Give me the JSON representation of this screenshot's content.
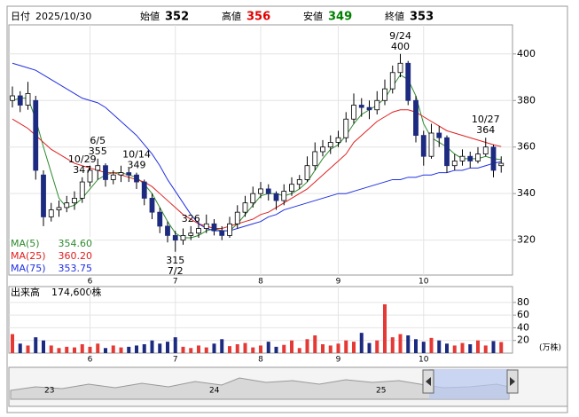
{
  "chart_data": {
    "type": "candlestick",
    "header": {
      "date_label": "日付",
      "date": "2025/10/30",
      "fields": [
        {
          "name": "始値",
          "value": 352,
          "color": "#000000"
        },
        {
          "name": "高値",
          "value": 356,
          "color": "#e00000"
        },
        {
          "name": "安値",
          "value": 349,
          "color": "#008000"
        },
        {
          "name": "終値",
          "value": 353,
          "color": "#000000"
        }
      ]
    },
    "categories": [
      null,
      null,
      null,
      null,
      null,
      null,
      null,
      null,
      null,
      null,
      "6",
      null,
      null,
      null,
      null,
      null,
      null,
      null,
      null,
      null,
      null,
      "7",
      null,
      null,
      null,
      null,
      null,
      null,
      null,
      null,
      null,
      null,
      "8",
      null,
      null,
      null,
      null,
      null,
      null,
      null,
      null,
      null,
      "9",
      null,
      null,
      null,
      null,
      null,
      null,
      null,
      null,
      null,
      null,
      "10",
      null,
      null,
      null,
      null,
      null,
      null,
      null,
      null,
      null,
      null
    ],
    "candles": [
      [
        380,
        386,
        377,
        382
      ],
      [
        382,
        384,
        375,
        378
      ],
      [
        378,
        388,
        376,
        383
      ],
      [
        380,
        382,
        346,
        350
      ],
      [
        348,
        350,
        326,
        330
      ],
      [
        330,
        336,
        328,
        333
      ],
      [
        333,
        337,
        330,
        334
      ],
      [
        334,
        339,
        332,
        336
      ],
      [
        336,
        341,
        333,
        338
      ],
      [
        338,
        347,
        336,
        345
      ],
      [
        345,
        352,
        343,
        350
      ],
      [
        350,
        355,
        346,
        352
      ],
      [
        352,
        353,
        343,
        346
      ],
      [
        346,
        350,
        344,
        348
      ],
      [
        348,
        352,
        345,
        349
      ],
      [
        349,
        351,
        345,
        348
      ],
      [
        348,
        349,
        342,
        345
      ],
      [
        345,
        346,
        335,
        338
      ],
      [
        338,
        340,
        329,
        332
      ],
      [
        332,
        334,
        323,
        326
      ],
      [
        326,
        328,
        319,
        322
      ],
      [
        322,
        324,
        315,
        320
      ],
      [
        320,
        325,
        318,
        322
      ],
      [
        322,
        326,
        320,
        323
      ],
      [
        323,
        328,
        321,
        325
      ],
      [
        325,
        331,
        323,
        327
      ],
      [
        327,
        329,
        322,
        324
      ],
      [
        324,
        326,
        320,
        322
      ],
      [
        322,
        330,
        321,
        327
      ],
      [
        327,
        335,
        325,
        332
      ],
      [
        332,
        339,
        330,
        336
      ],
      [
        336,
        343,
        334,
        340
      ],
      [
        340,
        345,
        338,
        342
      ],
      [
        342,
        344,
        337,
        340
      ],
      [
        340,
        341,
        333,
        337
      ],
      [
        337,
        344,
        335,
        341
      ],
      [
        341,
        347,
        339,
        344
      ],
      [
        344,
        348,
        342,
        346
      ],
      [
        346,
        356,
        345,
        352
      ],
      [
        352,
        362,
        350,
        358
      ],
      [
        358,
        363,
        356,
        360
      ],
      [
        360,
        365,
        357,
        362
      ],
      [
        362,
        367,
        360,
        364
      ],
      [
        364,
        375,
        362,
        372
      ],
      [
        372,
        383,
        370,
        378
      ],
      [
        378,
        381,
        373,
        377
      ],
      [
        377,
        380,
        372,
        376
      ],
      [
        376,
        384,
        374,
        380
      ],
      [
        380,
        389,
        378,
        385
      ],
      [
        385,
        395,
        383,
        392
      ],
      [
        392,
        400,
        390,
        396
      ],
      [
        396,
        397,
        378,
        380
      ],
      [
        380,
        382,
        362,
        365
      ],
      [
        365,
        367,
        352,
        356
      ],
      [
        356,
        370,
        355,
        366
      ],
      [
        366,
        369,
        360,
        364
      ],
      [
        364,
        365,
        349,
        352
      ],
      [
        352,
        357,
        350,
        354
      ],
      [
        354,
        359,
        352,
        356
      ],
      [
        356,
        358,
        351,
        354
      ],
      [
        354,
        360,
        353,
        357
      ],
      [
        357,
        364,
        356,
        360
      ],
      [
        360,
        361,
        347,
        350
      ],
      [
        352,
        356,
        349,
        353
      ]
    ],
    "up_color": "#ffffff",
    "down_color": "#1c2a80",
    "wick_color": "#000000",
    "ylim": [
      305,
      412.5
    ],
    "yticks": [
      320,
      340,
      360,
      380,
      400
    ],
    "grid": true,
    "ma": [
      {
        "name": "MA(5)",
        "color": "#2e8b2e",
        "last": {
          "value": 354.6,
          "label": "354.60"
        },
        "values": [
          380,
          381,
          381,
          372,
          360,
          349,
          338,
          334,
          335,
          338,
          342,
          346,
          348,
          349,
          349,
          348,
          347,
          344,
          340,
          334,
          328,
          323,
          321,
          321,
          322,
          324,
          325,
          324,
          324,
          327,
          331,
          335,
          339,
          340,
          340,
          339,
          340,
          342,
          345,
          350,
          355,
          359,
          361,
          365,
          370,
          374,
          376,
          378,
          381,
          386,
          391,
          389,
          382,
          370,
          364,
          362,
          360,
          357,
          355,
          355,
          355,
          356,
          355,
          354.6
        ]
      },
      {
        "name": "MA(25)",
        "color": "#e02020",
        "last": {
          "value": 360.2,
          "label": "360.20"
        },
        "values": [
          372,
          370,
          368,
          365,
          362,
          359,
          357,
          355,
          353,
          352,
          351,
          350,
          349,
          349,
          348,
          347,
          346,
          345,
          343,
          340,
          337,
          334,
          331,
          329,
          327,
          326,
          325,
          325,
          326,
          327,
          328,
          329,
          331,
          332,
          334,
          336,
          338,
          340,
          342,
          345,
          348,
          351,
          354,
          357,
          362,
          365,
          368,
          371,
          373,
          375,
          376,
          376,
          375,
          373,
          371,
          369,
          367,
          366,
          365,
          364,
          363,
          362,
          361,
          360.2
        ]
      },
      {
        "name": "MA(75)",
        "color": "#2030e0",
        "last": {
          "value": 353.75,
          "label": "353.75"
        },
        "values": [
          396,
          395,
          394,
          393,
          391,
          389,
          387,
          385,
          383,
          381,
          380,
          379,
          377,
          374,
          371,
          368,
          365,
          361,
          357,
          352,
          346,
          341,
          336,
          331,
          327,
          325,
          324,
          324,
          324,
          325,
          326,
          327,
          328,
          330,
          331,
          333,
          334,
          335,
          336,
          337,
          338,
          339,
          340,
          340,
          341,
          342,
          343,
          344,
          345,
          346,
          346,
          347,
          347,
          348,
          348,
          349,
          349,
          350,
          350,
          351,
          351,
          352,
          353,
          353.75
        ]
      }
    ],
    "annotations": [
      {
        "date": "9/24",
        "value": 400
      },
      {
        "date": "6/5",
        "value": 355
      },
      {
        "value": 326
      },
      {
        "value": 315,
        "date": "7/2"
      },
      {
        "date": "10/27",
        "value": 364
      },
      {
        "value": 349,
        "date": "10/14"
      },
      {
        "value": 347,
        "date": "10/29"
      }
    ],
    "volume": {
      "title": "出来高",
      "last": {
        "value": 17.46,
        "label": "174,600株"
      },
      "unit": "(万株)",
      "up_color": "#e53935",
      "down_color": "#1c2a80",
      "ylim": [
        0,
        98
      ],
      "yticks": [
        20,
        40,
        60,
        80
      ],
      "values": [
        30,
        15,
        12,
        25,
        20,
        12,
        8,
        10,
        9,
        14,
        10,
        15,
        8,
        12,
        9,
        10,
        12,
        14,
        20,
        15,
        18,
        25,
        10,
        8,
        12,
        9,
        15,
        22,
        11,
        14,
        16,
        9,
        12,
        18,
        10,
        13,
        20,
        8,
        22,
        28,
        14,
        12,
        15,
        20,
        18,
        32,
        16,
        20,
        77,
        25,
        30,
        28,
        22,
        18,
        24,
        20,
        15,
        12,
        16,
        14,
        20,
        12,
        19,
        17.46
      ]
    },
    "navigator": {
      "years": [
        "23",
        "24",
        "25"
      ]
    }
  }
}
